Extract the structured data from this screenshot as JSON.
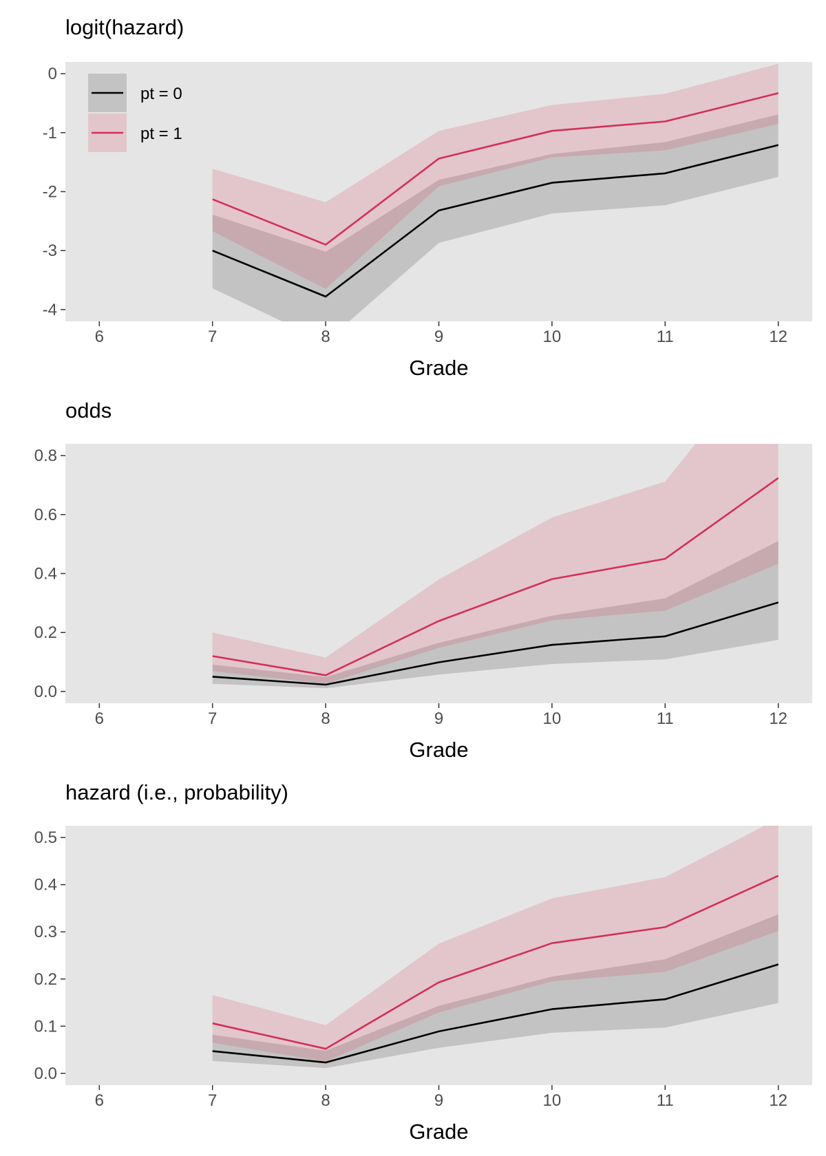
{
  "colors": {
    "panel_bg": "#e5e5e5",
    "pt0_line": "#000000",
    "pt0_band": "rgba(0,0,0,0.15)",
    "pt1_line": "#d42f55",
    "pt1_band": "rgba(212,47,85,0.17)",
    "tick_text": "#4d4d4d"
  },
  "legend": {
    "entries": [
      {
        "label": "pt = 0",
        "series": "pt0"
      },
      {
        "label": "pt = 1",
        "series": "pt1"
      }
    ]
  },
  "chart_data": [
    {
      "type": "line",
      "title": "logit(hazard)",
      "xlabel": "Grade",
      "ylabel": "",
      "x_ticks": [
        6,
        7,
        8,
        9,
        10,
        11,
        12
      ],
      "y_ticks": [
        0,
        -1,
        -2,
        -3,
        -4
      ],
      "y_tick_labels": [
        "0",
        "-1",
        "-2",
        "-3",
        "-4"
      ],
      "xlim": [
        5.7,
        12.3
      ],
      "ylim": [
        -4.2,
        0.2
      ],
      "legend_position": "top-left",
      "grid": false,
      "series": [
        {
          "key": "pt0",
          "name": "pt = 0",
          "x": [
            7,
            8,
            9,
            10,
            11,
            12
          ],
          "y": [
            -3.0,
            -3.78,
            -2.32,
            -1.85,
            -1.69,
            -1.21
          ],
          "lower": [
            -3.64,
            -4.55,
            -2.87,
            -2.37,
            -2.23,
            -1.75
          ],
          "upper": [
            -2.39,
            -3.02,
            -1.8,
            -1.36,
            -1.16,
            -0.69
          ]
        },
        {
          "key": "pt1",
          "name": "pt = 1",
          "x": [
            7,
            8,
            9,
            10,
            11,
            12
          ],
          "y": [
            -2.13,
            -2.9,
            -1.44,
            -0.97,
            -0.81,
            -0.33
          ],
          "lower": [
            -2.67,
            -3.65,
            -1.91,
            -1.42,
            -1.3,
            -0.85
          ],
          "upper": [
            -1.61,
            -2.18,
            -0.97,
            -0.53,
            -0.34,
            0.17
          ]
        }
      ]
    },
    {
      "type": "line",
      "title": "odds",
      "xlabel": "Grade",
      "ylabel": "",
      "x_ticks": [
        6,
        7,
        8,
        9,
        10,
        11,
        12
      ],
      "y_ticks": [
        0.0,
        0.2,
        0.4,
        0.6,
        0.8
      ],
      "y_tick_labels": [
        "0.0",
        "0.2",
        "0.4",
        "0.6",
        "0.8"
      ],
      "xlim": [
        5.7,
        12.3
      ],
      "ylim": [
        -0.04,
        0.84
      ],
      "grid": false,
      "series": [
        {
          "key": "pt0",
          "name": "pt = 0",
          "x": [
            7,
            8,
            9,
            10,
            11,
            12
          ],
          "y": [
            0.05,
            0.023,
            0.099,
            0.158,
            0.187,
            0.302
          ],
          "lower": [
            0.026,
            0.011,
            0.057,
            0.093,
            0.109,
            0.175
          ],
          "upper": [
            0.091,
            0.049,
            0.165,
            0.257,
            0.316,
            0.51
          ]
        },
        {
          "key": "pt1",
          "name": "pt = 1",
          "x": [
            7,
            8,
            9,
            10,
            11,
            12
          ],
          "y": [
            0.12,
            0.055,
            0.239,
            0.381,
            0.45,
            0.724
          ],
          "lower": [
            0.069,
            0.026,
            0.148,
            0.241,
            0.274,
            0.433
          ],
          "upper": [
            0.2,
            0.115,
            0.38,
            0.59,
            0.712,
            1.19
          ]
        }
      ]
    },
    {
      "type": "line",
      "title": "hazard (i.e., probability)",
      "xlabel": "Grade",
      "ylabel": "",
      "x_ticks": [
        6,
        7,
        8,
        9,
        10,
        11,
        12
      ],
      "y_ticks": [
        0.0,
        0.1,
        0.2,
        0.3,
        0.4,
        0.5
      ],
      "y_tick_labels": [
        "0.0",
        "0.1",
        "0.2",
        "0.3",
        "0.4",
        "0.5"
      ],
      "xlim": [
        5.7,
        12.3
      ],
      "ylim": [
        -0.025,
        0.525
      ],
      "grid": false,
      "series": [
        {
          "key": "pt0",
          "name": "pt = 0",
          "x": [
            7,
            8,
            9,
            10,
            11,
            12
          ],
          "y": [
            0.047,
            0.023,
            0.089,
            0.136,
            0.157,
            0.231
          ],
          "lower": [
            0.026,
            0.011,
            0.054,
            0.086,
            0.097,
            0.149
          ],
          "upper": [
            0.082,
            0.048,
            0.143,
            0.205,
            0.242,
            0.337
          ]
        },
        {
          "key": "pt1",
          "name": "pt = 1",
          "x": [
            7,
            8,
            9,
            10,
            11,
            12
          ],
          "y": [
            0.106,
            0.052,
            0.193,
            0.276,
            0.31,
            0.419
          ],
          "lower": [
            0.065,
            0.025,
            0.129,
            0.195,
            0.215,
            0.302
          ],
          "upper": [
            0.166,
            0.102,
            0.275,
            0.371,
            0.416,
            0.54
          ]
        }
      ]
    }
  ]
}
